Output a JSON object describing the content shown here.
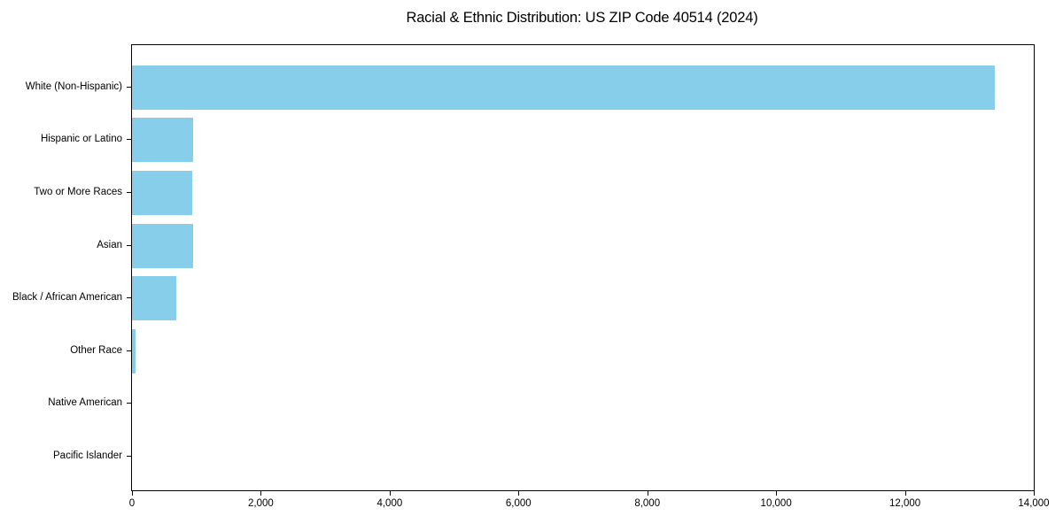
{
  "chart_data": {
    "type": "bar",
    "orientation": "horizontal",
    "title": "Racial & Ethnic Distribution: US ZIP Code 40514 (2024)",
    "categories": [
      "White (Non-Hispanic)",
      "Hispanic or Latino",
      "Two or More Races",
      "Asian",
      "Black / African American",
      "Other Race",
      "Native American",
      "Pacific Islander"
    ],
    "values": [
      13400,
      955,
      930,
      945,
      690,
      50,
      0,
      0
    ],
    "xlabel": "",
    "ylabel": "",
    "xlim": [
      0,
      14000
    ],
    "xticks": [
      0,
      2000,
      4000,
      6000,
      8000,
      10000,
      12000,
      14000
    ],
    "xtick_labels": [
      "0",
      "2,000",
      "4,000",
      "6,000",
      "8,000",
      "10,000",
      "12,000",
      "14,000"
    ],
    "grid": false,
    "legend": "none",
    "bar_color": "#87CEEB",
    "axis_color": "#000000",
    "background_color": "#ffffff",
    "text_color": "#000000"
  }
}
